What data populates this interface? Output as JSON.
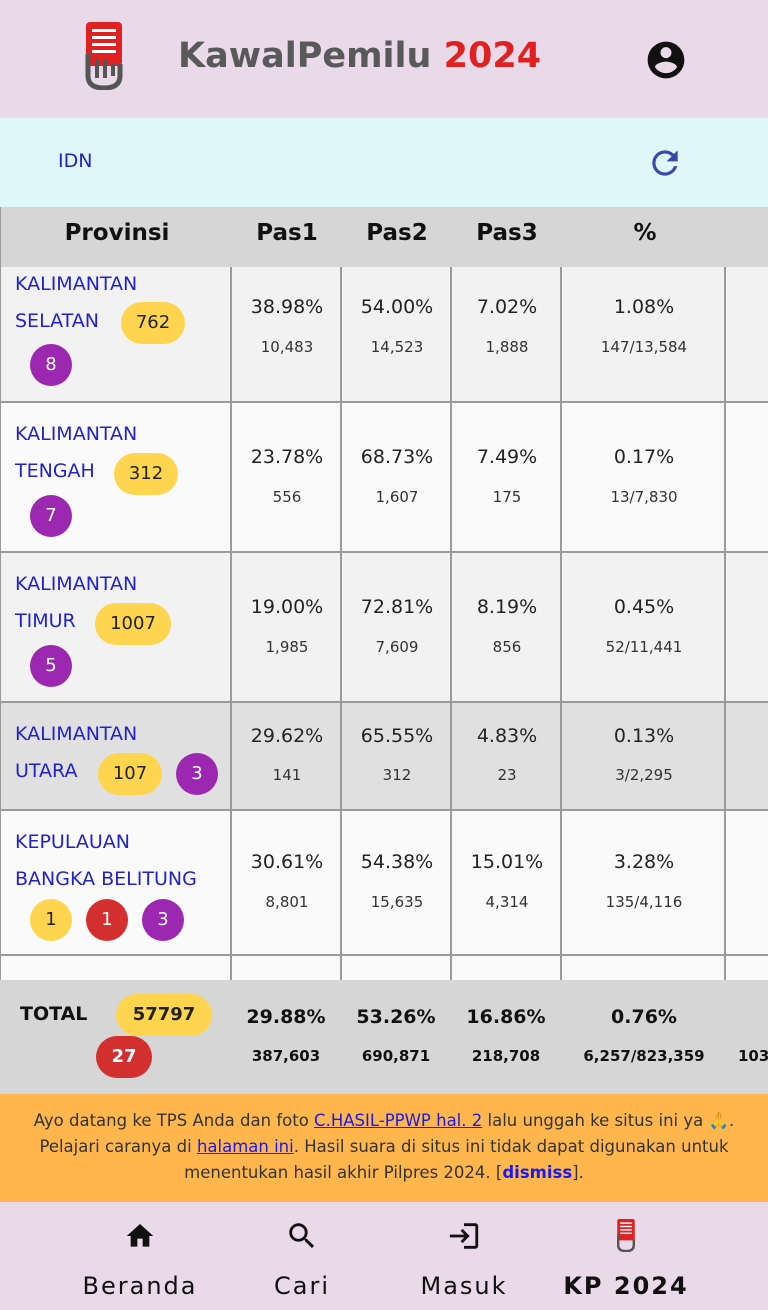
{
  "header": {
    "brand_name": "KawalPemilu",
    "brand_year": "2024",
    "logo_icon": "kp-logo-icon",
    "account_icon": "account-circle-icon"
  },
  "breadcrumb": {
    "label": "IDN",
    "refresh_icon": "refresh-icon"
  },
  "table": {
    "headers": [
      "Provinsi",
      "Pas1",
      "Pas2",
      "Pas3",
      "%"
    ],
    "rows": [
      {
        "province_line1": "KALIMANTAN",
        "province_line2": "SELATAN",
        "badge_yellow": "762",
        "badge_purple": "8",
        "pas1_pct": "38.98%",
        "pas1": "10,483",
        "pas2_pct": "54.00%",
        "pas2": "14,523",
        "pas3_pct": "7.02%",
        "pas3": "1,888",
        "pct": "1.08%",
        "ratio": "147/13,584"
      },
      {
        "province_line1": "KALIMANTAN",
        "province_line2": "TENGAH",
        "badge_yellow": "312",
        "badge_purple": "7",
        "pas1_pct": "23.78%",
        "pas1": "556",
        "pas2_pct": "68.73%",
        "pas2": "1,607",
        "pas3_pct": "7.49%",
        "pas3": "175",
        "pct": "0.17%",
        "ratio": "13/7,830"
      },
      {
        "province_line1": "KALIMANTAN",
        "province_line2": "TIMUR",
        "badge_yellow": "1007",
        "badge_purple": "5",
        "pas1_pct": "19.00%",
        "pas1": "1,985",
        "pas2_pct": "72.81%",
        "pas2": "7,609",
        "pas3_pct": "8.19%",
        "pas3": "856",
        "pct": "0.45%",
        "ratio": "52/11,441"
      },
      {
        "province_line1": "KALIMANTAN",
        "province_line2": "UTARA",
        "badge_yellow": "107",
        "badge_purple": "3",
        "pas1_pct": "29.62%",
        "pas1": "141",
        "pas2_pct": "65.55%",
        "pas2": "312",
        "pas3_pct": "4.83%",
        "pas3": "23",
        "pct": "0.13%",
        "ratio": "3/2,295"
      },
      {
        "province_line1": "KEPULAUAN",
        "province_line2": "BANGKA BELITUNG",
        "badge_yellow": "1",
        "badge_red": "1",
        "badge_purple": "3",
        "pas1_pct": "30.61%",
        "pas1": "8,801",
        "pas2_pct": "54.38%",
        "pas2": "15,635",
        "pas3_pct": "15.01%",
        "pas3": "4,314",
        "pct": "3.28%",
        "ratio": "135/4,116"
      }
    ],
    "total": {
      "label": "TOTAL",
      "badge_yellow": "57797",
      "badge_red": "27",
      "pas1_pct": "29.88%",
      "pas1": "387,603",
      "pas2_pct": "53.26%",
      "pas2": "690,871",
      "pas3_pct": "16.86%",
      "pas3": "218,708",
      "pct": "0.76%",
      "ratio": "6,257/823,359",
      "extra": "103"
    }
  },
  "notice": {
    "t1": "Ayo datang ke TPS Anda dan foto ",
    "link1": "C.HASIL-PPWP hal. 2",
    "t2": " lalu unggah ke situs ini ya 🙏. Pelajari caranya di ",
    "link2": "halaman ini",
    "t3": ". Hasil suara di situs ini tidak dapat digunakan untuk menentukan hasil akhir Pilpres 2024. [",
    "dismiss": "dismiss",
    "t4": "]."
  },
  "bottom_nav": {
    "items": [
      {
        "label": "Beranda",
        "icon": "home-icon"
      },
      {
        "label": "Cari",
        "icon": "search-icon"
      },
      {
        "label": "Masuk",
        "icon": "login-icon"
      },
      {
        "label": "KP 2024",
        "icon": "kp-logo-icon"
      }
    ]
  },
  "colors": {
    "header_bg": "#ead9e9",
    "crumb_bg": "#e0f7fa",
    "link": "#2222cc",
    "badge_yellow": "#ffd54f",
    "badge_purple": "#9c27b0",
    "badge_red": "#d32f2f",
    "notice_bg": "#ffb74d",
    "brand_red": "#e02121"
  }
}
